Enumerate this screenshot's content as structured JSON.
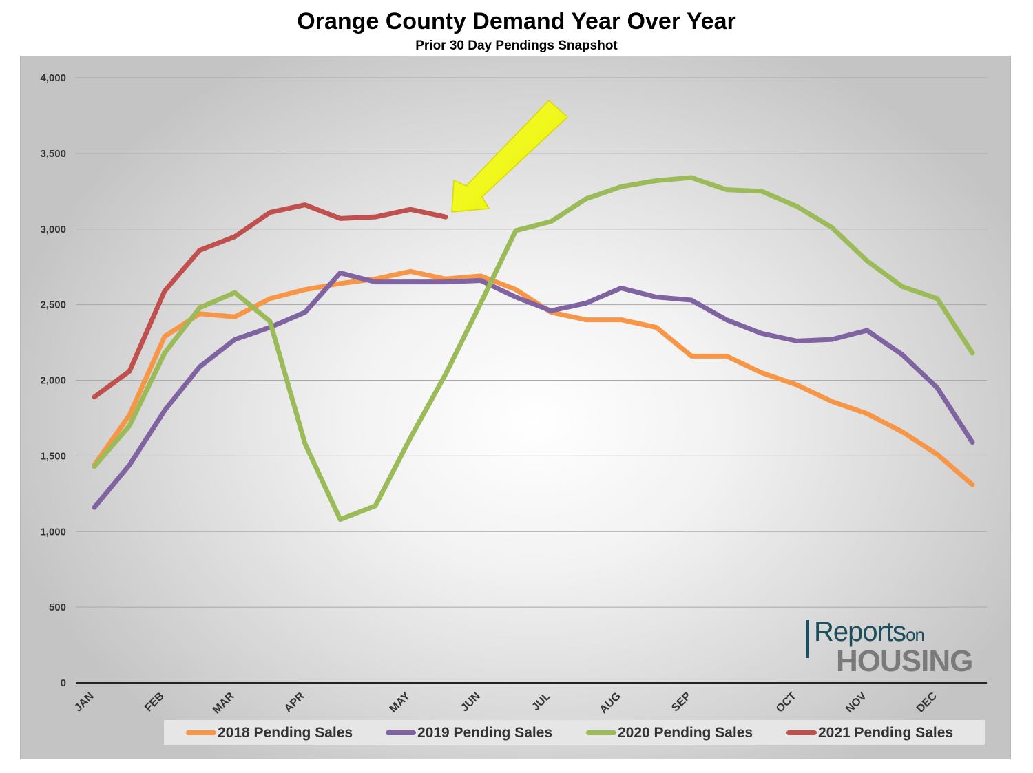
{
  "chart_data": {
    "type": "line",
    "title": "Orange County Demand Year Over Year",
    "subtitle": "Prior 30 Day Pendings Snapshot",
    "x_tick_labels": [
      "JAN",
      "FEB",
      "MAR",
      "APR",
      "MAY",
      "JUN",
      "JUL",
      "AUG",
      "SEP",
      "OCT",
      "NOV",
      "DEC"
    ],
    "x_tick_positions": [
      0,
      2,
      4,
      6,
      9,
      11,
      13,
      15,
      17,
      20,
      22,
      24
    ],
    "y_ticks": [
      0,
      500,
      1000,
      1500,
      2000,
      2500,
      3000,
      3500,
      4000
    ],
    "y_tick_labels": [
      "0",
      "500",
      "1,000",
      "1,500",
      "2,000",
      "2,500",
      "3,000",
      "3,500",
      "4,000"
    ],
    "ylim": [
      0,
      4000
    ],
    "grid": true,
    "legend_position": "bottom",
    "series": [
      {
        "name": "2018 Pending Sales",
        "color": "#f79646",
        "values": [
          1440,
          1770,
          2290,
          2440,
          2420,
          2540,
          2600,
          2640,
          2670,
          2720,
          2670,
          2690,
          2600,
          2450,
          2400,
          2400,
          2350,
          2160,
          2160,
          2050,
          1970,
          1860,
          1780,
          1660,
          1510,
          1310
        ]
      },
      {
        "name": "2019 Pending Sales",
        "color": "#8064a2",
        "values": [
          1160,
          1440,
          1800,
          2090,
          2270,
          2350,
          2450,
          2710,
          2650,
          2650,
          2650,
          2660,
          2550,
          2460,
          2510,
          2610,
          2550,
          2530,
          2400,
          2310,
          2260,
          2270,
          2330,
          2170,
          1950,
          1590
        ]
      },
      {
        "name": "2020 Pending Sales",
        "color": "#9bbb59",
        "values": [
          1430,
          1700,
          2180,
          2480,
          2580,
          2390,
          1580,
          1080,
          1170,
          1620,
          2040,
          2510,
          2990,
          3050,
          3200,
          3280,
          3320,
          3340,
          3260,
          3250,
          3150,
          3010,
          2790,
          2620,
          2540,
          2180
        ]
      },
      {
        "name": "2021 Pending Sales",
        "color": "#c0504d",
        "values": [
          1890,
          2060,
          2590,
          2860,
          2950,
          3110,
          3160,
          3070,
          3080,
          3130,
          3080
        ]
      }
    ],
    "annotation": "yellow arrow pointing to latest 2021 value"
  },
  "logo": {
    "line1": "Reports",
    "line1_small": "on",
    "line2": "HOUSING"
  }
}
